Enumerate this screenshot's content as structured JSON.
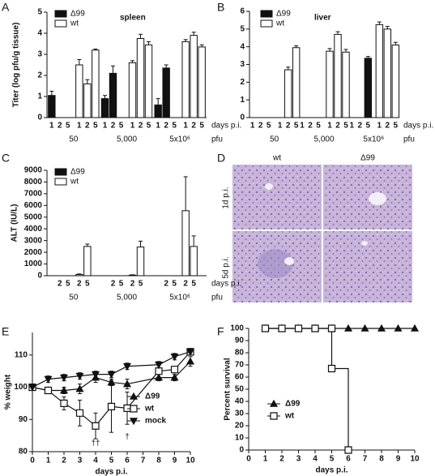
{
  "chart_data": [
    {
      "type": "bar",
      "panel_label": "A",
      "title": "spleen",
      "ylabel": "Titer (log pfu/g tissue)",
      "xlabel": "days p.i.",
      "group_axis_label": "pfu",
      "groups": [
        "50",
        "5,000",
        "5x10⁶"
      ],
      "categories": [
        "1",
        "2",
        "5"
      ],
      "series": [
        {
          "name": "Δ99",
          "color": "#111111",
          "values": [
            [
              1.05,
              null,
              null
            ],
            [
              0.9,
              2.1,
              null
            ],
            [
              0.6,
              2.35,
              null
            ]
          ],
          "errors": [
            [
              0.2,
              null,
              null
            ],
            [
              0.15,
              0.35,
              null
            ],
            [
              0.3,
              0.15,
              null
            ]
          ]
        },
        {
          "name": "wt",
          "color": "#ffffff",
          "values": [
            [
              2.5,
              1.6,
              3.2
            ],
            [
              2.6,
              3.75,
              3.45
            ],
            [
              3.6,
              3.9,
              3.35
            ]
          ],
          "errors": [
            [
              0.25,
              0.2,
              0.05
            ],
            [
              0.1,
              0.2,
              0.15
            ],
            [
              0.1,
              0.15,
              0.1
            ]
          ]
        }
      ],
      "ylim": [
        0,
        5
      ],
      "yticks": [
        0,
        1,
        2,
        3,
        4,
        5
      ],
      "legend": "upper left"
    },
    {
      "type": "bar",
      "panel_label": "B",
      "title": "liver",
      "xlabel": "days p.i.",
      "group_axis_label": "pfu",
      "groups": [
        "50",
        "5,000",
        "5x10⁶"
      ],
      "categories": [
        "1",
        "2",
        "5"
      ],
      "series": [
        {
          "name": "Δ99",
          "color": "#111111",
          "values": [
            [
              null,
              null,
              null
            ],
            [
              null,
              null,
              null
            ],
            [
              null,
              null,
              3.35
            ]
          ],
          "errors": [
            [
              null,
              null,
              null
            ],
            [
              null,
              null,
              null
            ],
            [
              null,
              null,
              0.1
            ]
          ]
        },
        {
          "name": "wt",
          "color": "#ffffff",
          "values": [
            [
              null,
              2.7,
              3.95
            ],
            [
              3.75,
              4.7,
              3.7
            ],
            [
              5.25,
              5.0,
              4.1
            ]
          ],
          "errors": [
            [
              null,
              0.15,
              0.1
            ],
            [
              0.15,
              0.15,
              0.15
            ],
            [
              0.15,
              0.15,
              0.15
            ]
          ]
        }
      ],
      "ylim": [
        0,
        6
      ],
      "yticks": [
        0,
        1,
        2,
        3,
        4,
        5,
        6
      ],
      "legend": "upper left"
    },
    {
      "type": "bar",
      "panel_label": "C",
      "ylabel": "ALT (IU/L)",
      "xlabel": "days p.i.",
      "group_axis_label": "pfu",
      "groups": [
        "50",
        "5,000",
        "5x10⁶"
      ],
      "categories": [
        "2",
        "5"
      ],
      "series": [
        {
          "name": "Δ99",
          "color": "#111111",
          "values": [
            [
              null,
              null
            ],
            [
              null,
              null
            ],
            [
              null,
              null
            ]
          ],
          "errors": [
            [
              null,
              null
            ],
            [
              null,
              null
            ],
            [
              null,
              null
            ]
          ]
        },
        {
          "name": "wt",
          "color": "#ffffff",
          "values": [
            [
              100,
              2500
            ],
            [
              50,
              2450
            ],
            [
              5550,
              2500
            ]
          ],
          "errors": [
            [
              50,
              200
            ],
            [
              30,
              500
            ],
            [
              2900,
              900
            ]
          ]
        }
      ],
      "ylim": [
        0,
        9000
      ],
      "yticks": [
        0,
        1000,
        2000,
        3000,
        4000,
        5000,
        6000,
        7000,
        8000,
        9000
      ],
      "legend": "upper left"
    },
    {
      "type": "line",
      "panel_label": "E",
      "ylabel": "% weight",
      "xlabel": "days p.i.",
      "x": [
        0,
        1,
        2,
        3,
        4,
        5,
        6,
        8,
        9,
        10
      ],
      "series": [
        {
          "name": "Δ99",
          "color": "#111111",
          "marker": "triangle-up",
          "values": [
            100,
            99,
            99,
            99.5,
            103,
            101.5,
            101,
            103,
            103,
            108
          ],
          "errors": [
            0,
            1,
            1,
            1.5,
            1.5,
            1,
            1.5,
            1,
            1,
            1.5
          ]
        },
        {
          "name": "wt",
          "color": "#111111",
          "marker": "square-open",
          "values": [
            100,
            99,
            95,
            92,
            88,
            94,
            93.5,
            105,
            105.5,
            111
          ],
          "errors": [
            0,
            1,
            2,
            4,
            4,
            8,
            5,
            2,
            1,
            1
          ]
        },
        {
          "name": "mock",
          "color": "#111111",
          "marker": "triangle-down",
          "values": [
            100,
            102.5,
            103,
            103.5,
            104,
            104,
            106.5,
            107,
            109.5,
            111
          ],
          "errors": [
            0,
            1,
            1,
            1,
            1,
            1,
            1,
            1,
            1,
            1
          ]
        }
      ],
      "annotations": [
        {
          "text": "††",
          "x": 4
        },
        {
          "text": "†",
          "x": 6
        }
      ],
      "xlim": [
        0,
        10
      ],
      "xticks": [
        0,
        1,
        2,
        3,
        4,
        5,
        6,
        7,
        8,
        9,
        10
      ],
      "ylim": [
        80,
        117
      ],
      "yticks": [
        80,
        90,
        100,
        110
      ],
      "legend": "lower right"
    },
    {
      "type": "line",
      "panel_label": "F",
      "ylabel": "Percent survival",
      "xlabel": "days p.i.",
      "step": true,
      "series": [
        {
          "name": "Δ99",
          "color": "#111111",
          "marker": "triangle-up",
          "x": [
            1,
            2,
            3,
            4,
            5,
            6,
            7,
            8,
            9,
            10
          ],
          "values": [
            100,
            100,
            100,
            100,
            100,
            100,
            100,
            100,
            100,
            100
          ]
        },
        {
          "name": "wt",
          "color": "#111111",
          "marker": "square-open",
          "x": [
            1,
            2,
            3,
            4,
            5,
            5,
            6
          ],
          "values": [
            100,
            100,
            100,
            100,
            100,
            67,
            0
          ]
        }
      ],
      "xlim": [
        0,
        10
      ],
      "xticks": [
        0,
        1,
        2,
        3,
        4,
        5,
        6,
        7,
        8,
        9,
        10
      ],
      "ylim": [
        0,
        100
      ],
      "yticks": [
        0,
        10,
        20,
        30,
        40,
        50,
        60,
        70,
        80,
        90,
        100
      ],
      "legend": "lower left"
    }
  ],
  "image_panel": {
    "panel_label": "D",
    "column_labels": [
      "wt",
      "Δ99"
    ],
    "row_labels": [
      "1d p.i.",
      "5d p.i."
    ]
  }
}
